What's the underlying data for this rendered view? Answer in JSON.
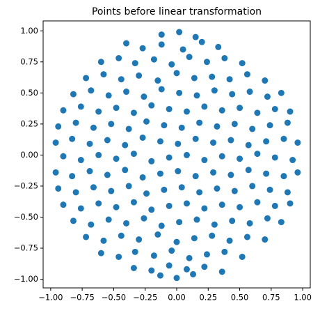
{
  "chart_data": {
    "type": "scatter",
    "title": "Points before linear transformation",
    "color": "#1f77b4",
    "x": [
      -0.12,
      0.02,
      0.15,
      -0.4,
      -0.27,
      -0.12,
      0.05,
      0.2,
      0.33,
      -0.6,
      -0.46,
      -0.33,
      -0.18,
      -0.04,
      0.1,
      0.24,
      0.38,
      0.52,
      -0.72,
      -0.58,
      -0.44,
      -0.3,
      -0.15,
      0.0,
      0.14,
      0.28,
      0.42,
      0.56,
      0.7,
      -0.82,
      -0.68,
      -0.54,
      -0.4,
      -0.26,
      -0.12,
      0.02,
      0.16,
      0.3,
      0.44,
      0.58,
      0.72,
      0.83,
      -0.9,
      -0.76,
      -0.62,
      -0.48,
      -0.34,
      -0.2,
      -0.06,
      0.08,
      0.22,
      0.36,
      0.5,
      0.64,
      0.78,
      0.9,
      -0.94,
      -0.8,
      -0.66,
      -0.52,
      -0.38,
      -0.24,
      -0.1,
      0.04,
      0.18,
      0.32,
      0.46,
      0.6,
      0.74,
      0.88,
      -0.96,
      -0.83,
      -0.69,
      -0.55,
      -0.41,
      -0.27,
      -0.13,
      0.01,
      0.15,
      0.29,
      0.43,
      0.57,
      0.71,
      0.85,
      0.96,
      -0.9,
      -0.76,
      -0.62,
      -0.48,
      -0.34,
      -0.2,
      -0.06,
      0.08,
      0.22,
      0.36,
      0.5,
      0.64,
      0.78,
      0.92,
      -0.96,
      -0.83,
      -0.69,
      -0.55,
      -0.41,
      -0.27,
      -0.13,
      0.01,
      0.15,
      0.29,
      0.43,
      0.57,
      0.71,
      0.85,
      0.96,
      -0.94,
      -0.8,
      -0.66,
      -0.52,
      -0.38,
      -0.24,
      -0.1,
      0.04,
      0.18,
      0.32,
      0.46,
      0.6,
      0.74,
      0.88,
      -0.9,
      -0.76,
      -0.62,
      -0.48,
      -0.34,
      -0.2,
      -0.06,
      0.08,
      0.22,
      0.36,
      0.5,
      0.64,
      0.78,
      0.9,
      -0.82,
      -0.68,
      -0.54,
      -0.4,
      -0.26,
      -0.12,
      0.02,
      0.16,
      0.3,
      0.44,
      0.58,
      0.72,
      0.83,
      -0.72,
      -0.58,
      -0.44,
      -0.3,
      -0.15,
      0.0,
      0.14,
      0.28,
      0.42,
      0.56,
      0.7,
      -0.6,
      -0.46,
      -0.33,
      -0.18,
      -0.04,
      0.1,
      0.24,
      0.38,
      0.52,
      -0.34,
      -0.2,
      -0.06,
      0.08,
      0.22,
      0.36,
      -0.13,
      0.0,
      0.13
    ],
    "values": [
      0.97,
      0.99,
      0.95,
      0.9,
      0.86,
      0.89,
      0.85,
      0.91,
      0.87,
      0.75,
      0.78,
      0.74,
      0.77,
      0.73,
      0.79,
      0.75,
      0.78,
      0.74,
      0.62,
      0.65,
      0.61,
      0.64,
      0.6,
      0.66,
      0.62,
      0.63,
      0.61,
      0.65,
      0.6,
      0.49,
      0.52,
      0.48,
      0.51,
      0.47,
      0.53,
      0.5,
      0.48,
      0.52,
      0.49,
      0.51,
      0.47,
      0.5,
      0.36,
      0.39,
      0.35,
      0.38,
      0.34,
      0.4,
      0.37,
      0.35,
      0.39,
      0.36,
      0.38,
      0.34,
      0.37,
      0.35,
      0.23,
      0.26,
      0.22,
      0.25,
      0.21,
      0.27,
      0.24,
      0.22,
      0.26,
      0.23,
      0.25,
      0.21,
      0.24,
      0.26,
      0.1,
      0.13,
      0.09,
      0.12,
      0.08,
      0.14,
      0.11,
      0.09,
      0.13,
      0.1,
      0.12,
      0.08,
      0.11,
      0.13,
      0.1,
      -0.01,
      -0.04,
      0.0,
      -0.03,
      0.01,
      -0.05,
      -0.02,
      0.0,
      -0.04,
      -0.01,
      -0.03,
      0.01,
      -0.02,
      -0.04,
      -0.14,
      -0.17,
      -0.13,
      -0.16,
      -0.12,
      -0.18,
      -0.15,
      -0.13,
      -0.17,
      -0.14,
      -0.16,
      -0.12,
      -0.15,
      -0.17,
      -0.14,
      -0.27,
      -0.3,
      -0.26,
      -0.29,
      -0.25,
      -0.31,
      -0.28,
      -0.26,
      -0.3,
      -0.27,
      -0.29,
      -0.25,
      -0.28,
      -0.3,
      -0.4,
      -0.43,
      -0.39,
      -0.42,
      -0.38,
      -0.44,
      -0.41,
      -0.39,
      -0.43,
      -0.4,
      -0.42,
      -0.38,
      -0.41,
      -0.39,
      -0.53,
      -0.56,
      -0.52,
      -0.55,
      -0.51,
      -0.57,
      -0.54,
      -0.52,
      -0.56,
      -0.53,
      -0.55,
      -0.51,
      -0.54,
      -0.66,
      -0.69,
      -0.65,
      -0.68,
      -0.64,
      -0.7,
      -0.67,
      -0.65,
      -0.69,
      -0.66,
      -0.68,
      -0.79,
      -0.82,
      -0.78,
      -0.81,
      -0.77,
      -0.83,
      -0.8,
      -0.78,
      -0.82,
      -0.91,
      -0.93,
      -0.89,
      -0.92,
      -0.9,
      -0.94,
      -0.97,
      -0.99,
      -0.96
    ],
    "xlim": [
      -1.06,
      1.06
    ],
    "ylim": [
      -1.07,
      1.08
    ],
    "xticks": [
      {
        "value": -1,
        "label": "−1.00"
      },
      {
        "value": -0.75,
        "label": "−0.75"
      },
      {
        "value": -0.5,
        "label": "−0.50"
      },
      {
        "value": -0.25,
        "label": "−0.25"
      },
      {
        "value": 0,
        "label": "0.00"
      },
      {
        "value": 0.25,
        "label": "0.25"
      },
      {
        "value": 0.5,
        "label": "0.50"
      },
      {
        "value": 0.75,
        "label": "0.75"
      },
      {
        "value": 1,
        "label": "1.00"
      }
    ],
    "yticks": [
      {
        "value": -1,
        "label": "−1.00"
      },
      {
        "value": -0.75,
        "label": "−0.75"
      },
      {
        "value": -0.5,
        "label": "−0.50"
      },
      {
        "value": -0.25,
        "label": "−0.25"
      },
      {
        "value": 0,
        "label": "0.00"
      },
      {
        "value": 0.25,
        "label": "0.25"
      },
      {
        "value": 0.5,
        "label": "0.50"
      },
      {
        "value": 0.75,
        "label": "0.75"
      },
      {
        "value": 1,
        "label": "1.00"
      }
    ],
    "grid": false
  }
}
